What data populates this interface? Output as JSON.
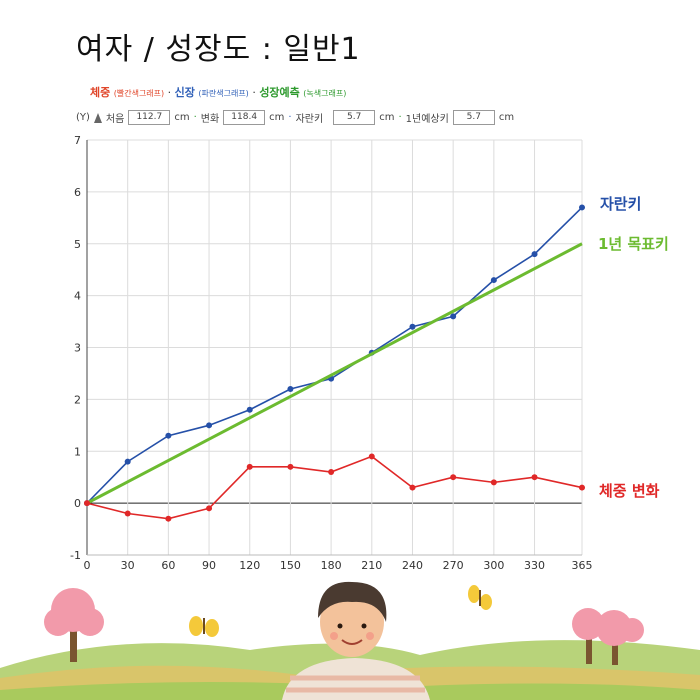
{
  "header": {
    "title": "여자 / 성장도 : 일반1"
  },
  "legend": {
    "weight": "체중",
    "weight_note": "(빨간색그래프)",
    "sep1": "·",
    "height": "신장",
    "height_note": "(파란색그래프)",
    "sep2": "·",
    "predict": "성장예측",
    "predict_note": "(녹색그래프)"
  },
  "inputs": {
    "y_label": "(Y)",
    "start_label": "처음",
    "start_value": "112.7",
    "start_unit": "cm",
    "change_label": "변화",
    "change_value": "118.4",
    "change_unit": "cm",
    "grow_label": "자란키",
    "grow_value": "5.7",
    "grow_unit": "cm",
    "expect_label": "1년예상키",
    "expect_value": "5.7",
    "expect_unit": "cm"
  },
  "labels": {
    "height": "자란키",
    "target": "1년 목표키",
    "weight": "체중 변화"
  },
  "colors": {
    "height": "#2550a8",
    "target": "#6cbb30",
    "weight": "#e02828"
  },
  "chart_data": {
    "type": "line",
    "x": [
      0,
      30,
      60,
      90,
      120,
      150,
      180,
      210,
      240,
      270,
      300,
      330,
      365
    ],
    "x_ticks": [
      0,
      30,
      60,
      90,
      120,
      150,
      180,
      210,
      240,
      270,
      300,
      330,
      365
    ],
    "xlim": [
      0,
      365
    ],
    "ylim": [
      -1,
      7
    ],
    "y_ticks": [
      -1,
      0,
      1,
      2,
      3,
      4,
      5,
      6,
      7
    ],
    "grid": true,
    "series": [
      {
        "name": "자란키",
        "color": "#2550a8",
        "markers": true,
        "values": [
          0,
          0.8,
          1.3,
          1.5,
          1.8,
          2.2,
          2.4,
          2.9,
          3.4,
          3.6,
          4.3,
          4.8,
          5.7
        ]
      },
      {
        "name": "1년 목표키",
        "color": "#6cbb30",
        "markers": false,
        "x": [
          0,
          365
        ],
        "values": [
          0,
          5.0
        ]
      },
      {
        "name": "체중 변화",
        "color": "#e02828",
        "markers": true,
        "values": [
          0,
          -0.2,
          -0.3,
          -0.1,
          0.7,
          0.7,
          0.6,
          0.9,
          0.3,
          0.5,
          0.4,
          0.5,
          0.3
        ]
      }
    ]
  }
}
